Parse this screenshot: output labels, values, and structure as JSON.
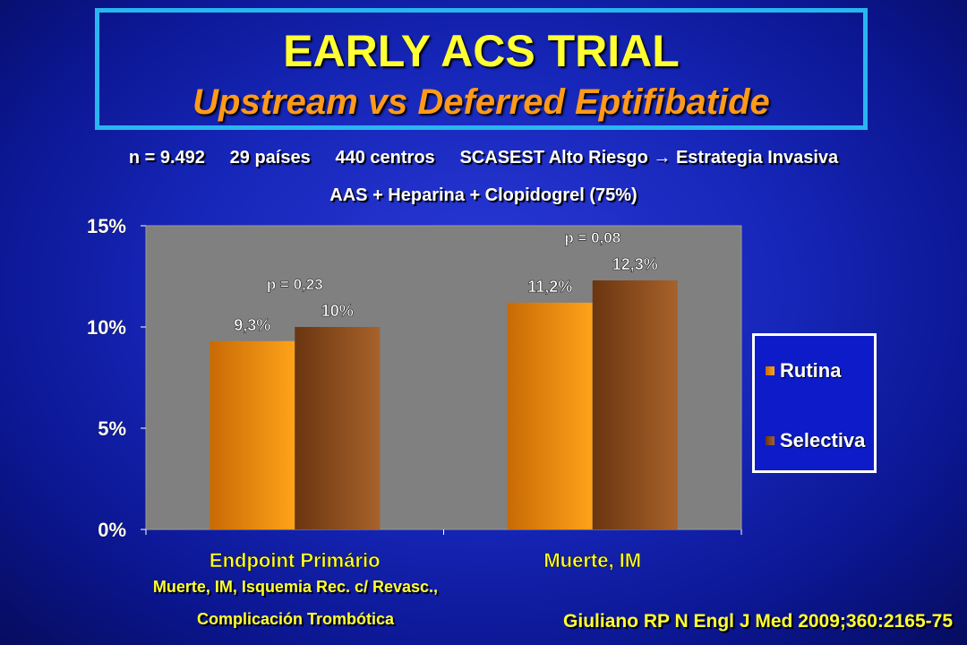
{
  "header": {
    "title": "EARLY ACS TRIAL",
    "subtitle": "Upstream vs Deferred Eptifibatide"
  },
  "info": {
    "line1": "n = 9.492     29 países     440 centros     SCASEST Alto Riesgo → Estrategia Invasiva",
    "line2": "AAS + Heparina + Clopidogrel (75%)"
  },
  "chart_data": {
    "type": "bar",
    "categories": [
      "Endpoint Primário",
      "Muerte, IM"
    ],
    "series": [
      {
        "name": "Rutina",
        "values": [
          9.3,
          11.2
        ],
        "labels": [
          "9,3%",
          "11,2%"
        ],
        "color": "#f0900a"
      },
      {
        "name": "Selectiva",
        "values": [
          10,
          12.3
        ],
        "labels": [
          "10%",
          "12,3%"
        ],
        "color": "#9a5418"
      }
    ],
    "ylim": [
      0,
      15
    ],
    "yticks": [
      0,
      5,
      10,
      15
    ],
    "ytick_labels": [
      "0%",
      "5%",
      "10%",
      "15%"
    ],
    "annotations": [
      "p = 0,23",
      "p = 0,08"
    ],
    "grid": false,
    "legend": "right",
    "plot_bg": "#808080"
  },
  "footnotes": {
    "line1": "Muerte, IM, Isquemia Rec. c/ Revasc.,",
    "line2": "Complicación Trombótica"
  },
  "citation": "Giuliano RP N Engl J Med 2009;360:2165-75",
  "colors": {
    "title": "#ffff33",
    "subtitle": "#ff9a1a",
    "frame": "#29b6f0",
    "background": "#1626b8"
  }
}
